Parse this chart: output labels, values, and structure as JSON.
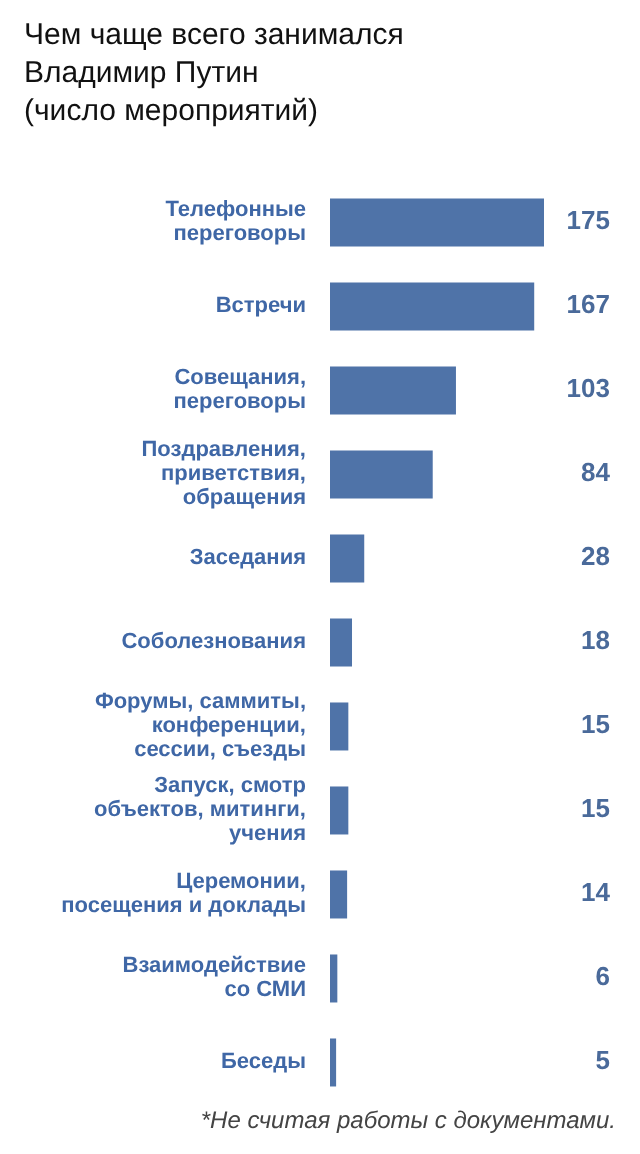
{
  "chart_data": {
    "type": "bar",
    "orientation": "horizontal",
    "title": "Чем чаще всего занимался\nВладимир Путин\n(число мероприятий)",
    "categories": [
      "Телефонные\nпереговоры",
      "Встречи",
      "Совещания,\nпереговоры",
      "Поздравления,\nприветствия,\nобращения",
      "Заседания",
      "Соболезнования",
      "Форумы, саммиты,\nконференции,\nсессии, съезды",
      "Запуск, смотр\nобъектов, митинги,\nучения",
      "Церемонии,\nпосещения и доклады",
      "Взаимодействие\nсо СМИ",
      "Беседы"
    ],
    "values": [
      175,
      167,
      103,
      84,
      28,
      18,
      15,
      15,
      14,
      6,
      5
    ],
    "color": "#4f73a8",
    "data_labels": true,
    "grid": false,
    "legend": false,
    "annotations": [
      "*Не считая работы с документами."
    ]
  }
}
